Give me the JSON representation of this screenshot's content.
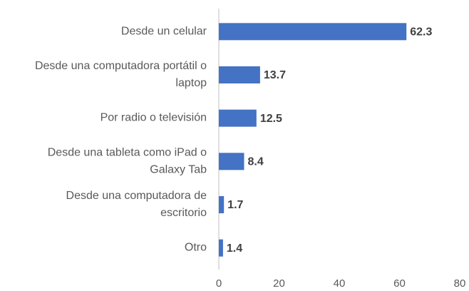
{
  "chart_data": {
    "type": "bar",
    "orientation": "horizontal",
    "categories": [
      "Desde un celular",
      "Desde una computadora portátil o laptop",
      "Por radio o televisión",
      "Desde una tableta como iPad o Galaxy Tab",
      "Desde una computadora de escritorio",
      "Otro"
    ],
    "values": [
      62.3,
      13.7,
      12.5,
      8.4,
      1.7,
      1.4
    ],
    "color": "#4472c4",
    "xlim": [
      0,
      80
    ],
    "xticks": [
      0,
      20,
      40,
      60,
      80
    ],
    "grid": false
  }
}
